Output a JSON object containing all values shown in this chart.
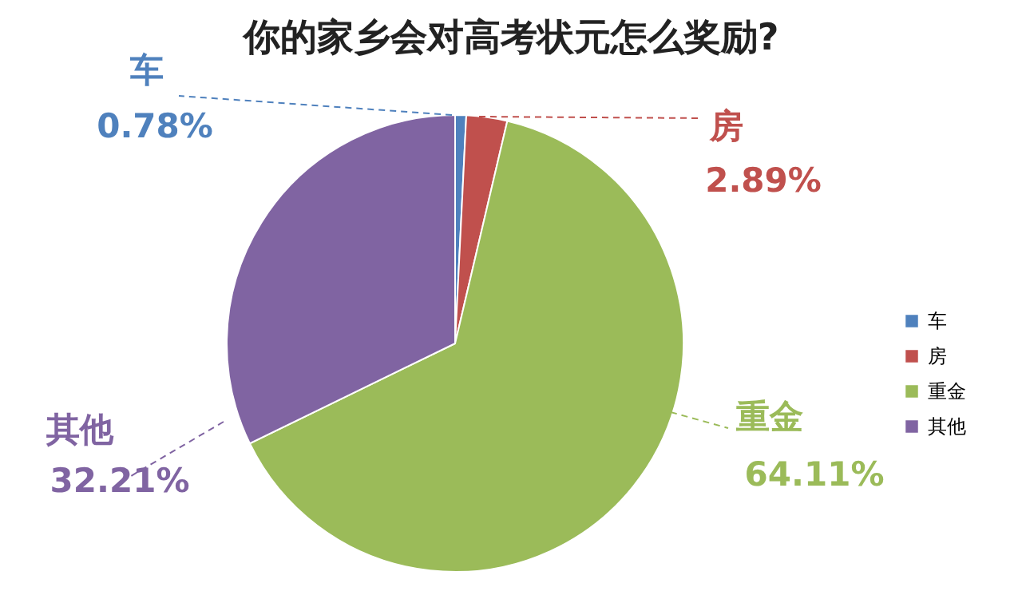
{
  "chart_data": {
    "type": "pie",
    "title": "你的家乡会对高考状元怎么奖励?",
    "categories": [
      "车",
      "房",
      "重金",
      "其他"
    ],
    "values": [
      0.78,
      2.89,
      64.11,
      32.21
    ],
    "colors": [
      "#4f81bd",
      "#c0504d",
      "#9bbb59",
      "#8064a2"
    ],
    "value_labels": [
      "0.78%",
      "2.89%",
      "64.11%",
      "32.21%"
    ],
    "legend": "right"
  }
}
